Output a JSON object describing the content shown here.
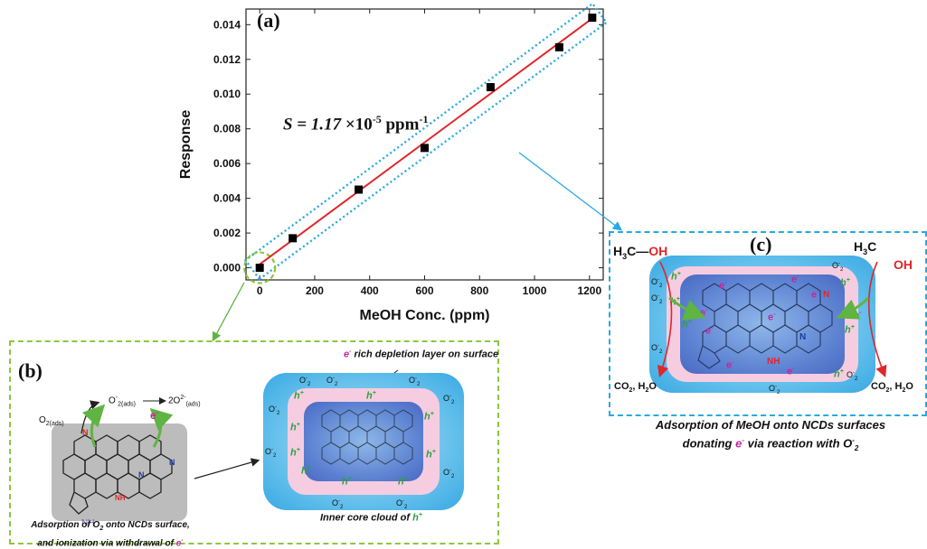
{
  "panel_a": {
    "label": "(a)",
    "sensitivity_prefix": "S",
    "sensitivity_mid": " = ",
    "sensitivity_value": "1.17",
    "sensitivity_times": " ×10",
    "sensitivity_exp": "-5",
    "sensitivity_unit": " ppm",
    "sensitivity_unit_exp": "-1"
  },
  "panel_b": {
    "label": "(b)",
    "top_label": "rich depletion layer on surface",
    "e_symbol": "e",
    "e_sup": "-",
    "core_label": "Inner core cloud of ",
    "h_symbol": "h",
    "h_sup": "+",
    "o2ads": "O",
    "o2ads_sub": "2(ads)",
    "o2_minus": "O",
    "o2_minus_sup": "-",
    "o2_minus_sub": "2(ads)",
    "two_o2": "2O",
    "two_o2_sup": "2-",
    "two_o2_sub": "(ads)",
    "nh": "NH",
    "caption_line1": "Adsorption of O",
    "caption_line1_sub": "2",
    "caption_line1_end": " onto NCDs surface,",
    "caption_line2": "and ionization via withdrawal of "
  },
  "panel_c": {
    "label": "(c)",
    "h3c": "H",
    "h3c_sub": "3",
    "h3c_c": "C",
    "oh": "OH",
    "co2": "CO",
    "co2_sub": "2",
    "h2o": ", H",
    "h2o_sub": "2",
    "h2o_end": "O",
    "nh": "NH",
    "caption_line1": "Adsorption of MeOH onto NCDs surfaces",
    "caption_line2a": "donating ",
    "caption_line2b": " via reaction with O",
    "caption_line2_sup": "-",
    "caption_line2_sub": "2"
  },
  "colors": {
    "fit_line": "#e0262b",
    "marker": "#000000",
    "blue_dash": "#29a9e0",
    "green_dash": "#8dc63f",
    "electron": "#c2279b",
    "hole": "#2ea043",
    "oxygen_red": "#e0262b"
  },
  "chart_data": {
    "type": "scatter",
    "title": "",
    "xlabel": "MeOH Conc. (ppm)",
    "ylabel": "Response",
    "xlim": [
      -50,
      1250
    ],
    "ylim": [
      -0.0007,
      0.0149
    ],
    "xticks": [
      0,
      200,
      400,
      600,
      800,
      1000,
      1200
    ],
    "yticks": [
      0.0,
      0.002,
      0.004,
      0.006,
      0.008,
      0.01,
      0.012,
      0.014
    ],
    "ytick_labels": [
      "0.000",
      "0.002",
      "0.004",
      "0.006",
      "0.008",
      "0.010",
      "0.012",
      "0.014"
    ],
    "series": [
      {
        "x": [
          0,
          120,
          360,
          600,
          840,
          1090,
          1210
        ],
        "y": [
          0.0,
          0.0017,
          0.0045,
          0.0069,
          0.0104,
          0.0127,
          0.0144
        ]
      }
    ],
    "fit": {
      "slope": 1.17e-05,
      "intercept": 0.0002,
      "x_range": [
        0,
        1210
      ]
    }
  }
}
